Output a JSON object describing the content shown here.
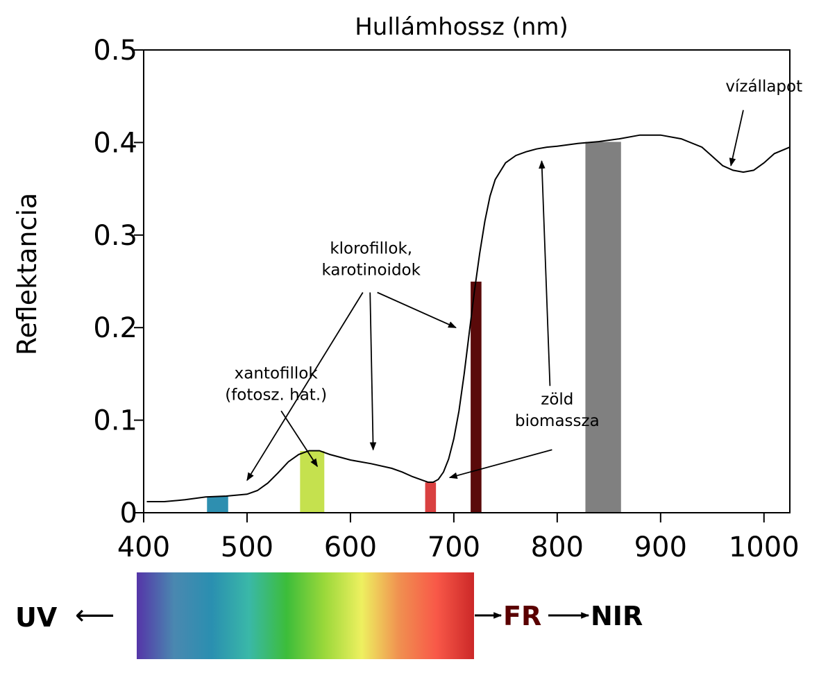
{
  "chart_data": {
    "type": "line",
    "title": "Hullámhossz (nm)",
    "xlabel": "Hullámhossz (nm)",
    "ylabel": "Reflektancia",
    "xlim": [
      400,
      1025
    ],
    "ylim": [
      0,
      0.5
    ],
    "x_ticks": [
      "400",
      "500",
      "600",
      "700",
      "800",
      "900",
      "1000"
    ],
    "y_ticks": [
      "0",
      "0.1",
      "0.2",
      "0.3",
      "0.4",
      "0.5"
    ],
    "grid": false,
    "legend": "none",
    "series": [
      {
        "x": [
          403,
          420,
          440,
          460,
          480,
          500,
          510,
          520,
          530,
          540,
          550,
          560,
          570,
          580,
          600,
          620,
          640,
          650,
          660,
          670,
          675,
          680,
          685,
          690,
          695,
          700,
          705,
          710,
          715,
          720,
          725,
          730,
          735,
          740,
          750,
          760,
          770,
          780,
          790,
          800,
          820,
          840,
          860,
          880,
          900,
          920,
          940,
          950,
          960,
          970,
          980,
          990,
          1000,
          1010,
          1025
        ],
        "y": [
          0.012,
          0.012,
          0.014,
          0.017,
          0.018,
          0.02,
          0.024,
          0.032,
          0.043,
          0.055,
          0.063,
          0.067,
          0.067,
          0.063,
          0.057,
          0.053,
          0.048,
          0.044,
          0.039,
          0.035,
          0.033,
          0.033,
          0.036,
          0.044,
          0.058,
          0.08,
          0.11,
          0.15,
          0.195,
          0.24,
          0.28,
          0.315,
          0.342,
          0.36,
          0.378,
          0.386,
          0.39,
          0.393,
          0.395,
          0.396,
          0.399,
          0.401,
          0.404,
          0.408,
          0.408,
          0.404,
          0.395,
          0.385,
          0.375,
          0.37,
          0.368,
          0.37,
          0.378,
          0.388,
          0.395
        ]
      }
    ],
    "bands": [
      {
        "from": 461,
        "to": 482,
        "height": 0.018,
        "color": "#2e8fb0"
      },
      {
        "from": 551,
        "to": 575,
        "height": 0.067,
        "color": "#c5e14e"
      },
      {
        "from": 672,
        "to": 683,
        "height": 0.033,
        "color": "#d94040"
      },
      {
        "from": 716,
        "to": 727,
        "height": 0.25,
        "color": "#5a0a0a"
      },
      {
        "from": 827,
        "to": 862,
        "height": 0.401,
        "color": "#808080"
      }
    ],
    "annotations": [
      {
        "lines": [
          "vízállapot"
        ],
        "text_at": [
          1000,
          0.455
        ],
        "arrows": [
          [
            980,
            0.435,
            968,
            0.375
          ]
        ]
      },
      {
        "lines": [
          "klorofillok,",
          "karotinoidok"
        ],
        "text_at": [
          620,
          0.28
        ],
        "arrows": [
          [
            612,
            0.238,
            500,
            0.035
          ],
          [
            619,
            0.238,
            622,
            0.068
          ],
          [
            626,
            0.238,
            702,
            0.2
          ]
        ]
      },
      {
        "lines": [
          "xantofillok",
          "(fotosz. hat.)"
        ],
        "text_at": [
          528,
          0.145
        ],
        "arrows": [
          [
            533,
            0.11,
            568,
            0.05
          ]
        ]
      },
      {
        "lines": [
          "zöld",
          "biomassza"
        ],
        "text_at": [
          800,
          0.117
        ],
        "arrows": [
          [
            793,
            0.137,
            785,
            0.38
          ],
          [
            795,
            0.068,
            696,
            0.038
          ]
        ]
      }
    ]
  },
  "spectrum": {
    "left_label": "UV",
    "left_arrow": "⟵",
    "mid_label": "FR",
    "right_label": "NIR",
    "fr_color": "#5a0000",
    "colors": [
      "#5535a8",
      "#4a88b0",
      "#2a8fb0",
      "#3ab8a8",
      "#3cbd3a",
      "#9ad83a",
      "#eef060",
      "#f09050",
      "#f85848",
      "#cc2828"
    ]
  }
}
